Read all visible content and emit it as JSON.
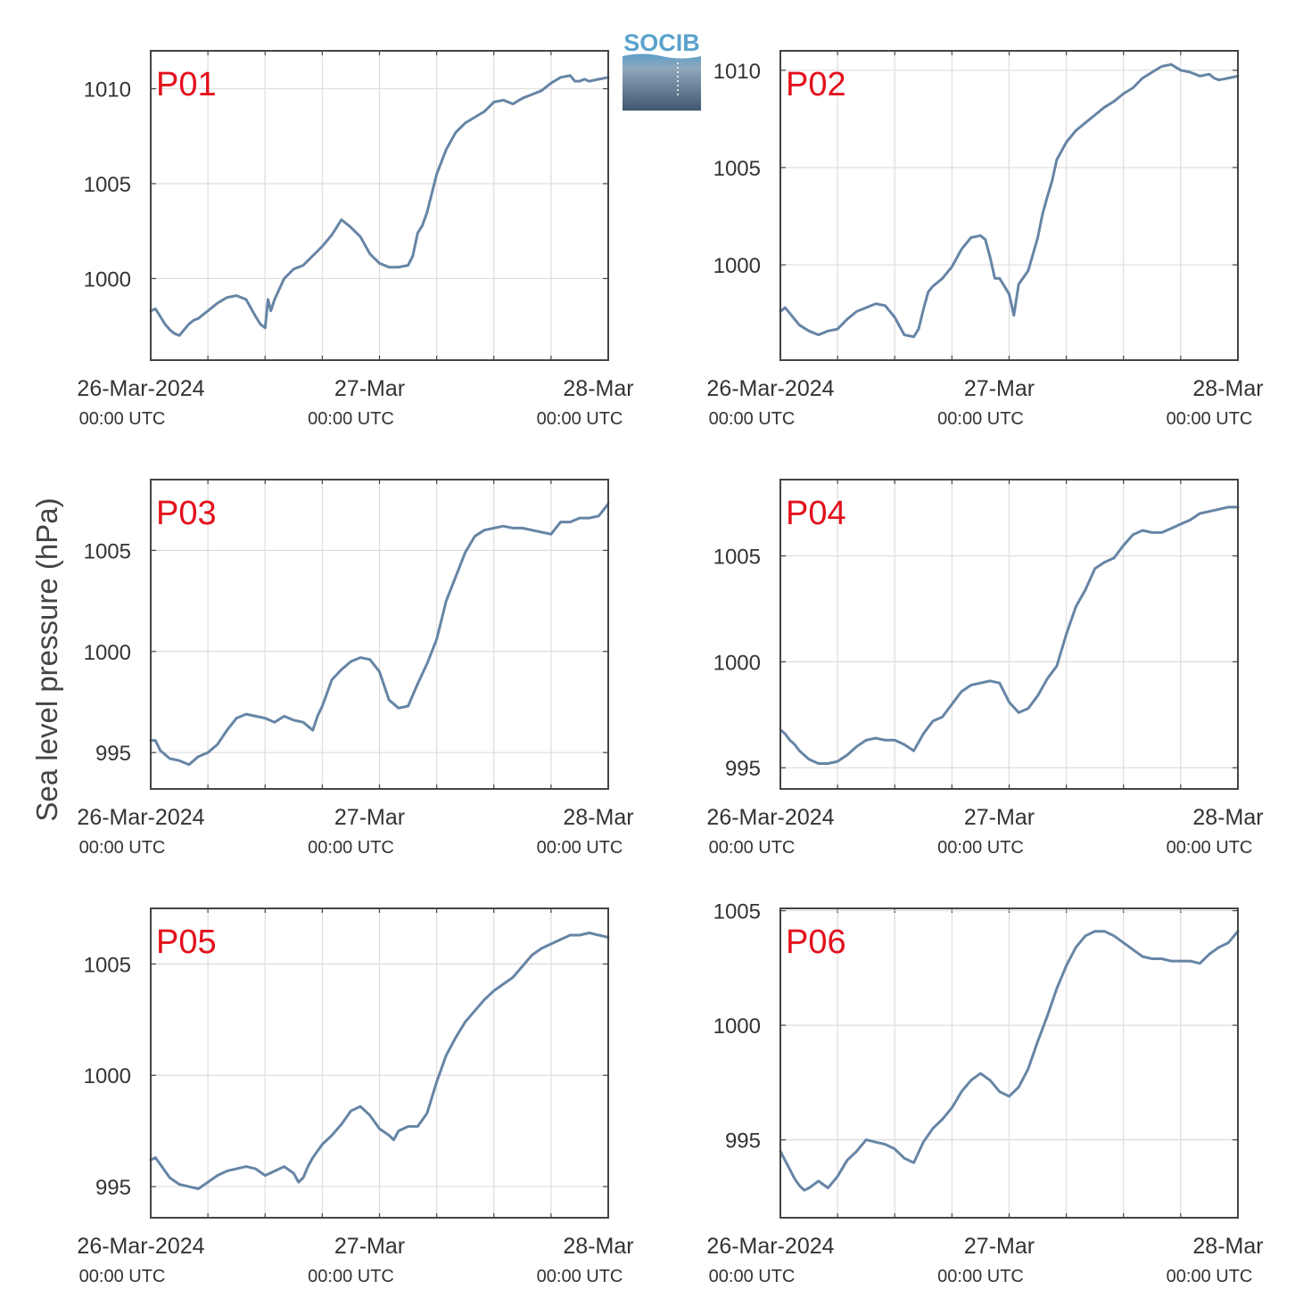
{
  "figure": {
    "ylabel": "Sea level pressure (hPa)",
    "logo_text": "SOCIB",
    "x_tick_dates": [
      "26-Mar-2024",
      "27-Mar",
      "28-Mar"
    ],
    "x_tick_times": [
      "00:00 UTC",
      "00:00 UTC",
      "00:00 UTC"
    ],
    "colors": {
      "line": "#6685a6",
      "panel_label": "#e3101b",
      "grid": "#dddddd",
      "axes": "#444444"
    }
  },
  "chart_data": [
    {
      "type": "line",
      "panel": "P01",
      "title": "",
      "xlabel": "",
      "ylabel": "Sea level pressure (hPa)",
      "xlim": [
        0,
        48
      ],
      "ylim": [
        995.7,
        1012.0
      ],
      "yticks": [
        1000,
        1005,
        1010
      ],
      "grid": true,
      "x": [
        0,
        0.5,
        1,
        1.5,
        2,
        2.5,
        3,
        3.5,
        4,
        4.5,
        5,
        6,
        7,
        8,
        9,
        10,
        11,
        11.5,
        12,
        12.3,
        12.6,
        13,
        14,
        15,
        16,
        17,
        18,
        19,
        20,
        20.5,
        21,
        22,
        23,
        24,
        25,
        26,
        27,
        27.5,
        28,
        28.5,
        29,
        30,
        31,
        32,
        33,
        34,
        35,
        36,
        37,
        38,
        39,
        40,
        41,
        42,
        43,
        44,
        44.5,
        45,
        45.5,
        46,
        47,
        48
      ],
      "values": [
        998.3,
        998.4,
        998.0,
        997.6,
        997.3,
        997.1,
        997.0,
        997.3,
        997.6,
        997.8,
        997.9,
        998.3,
        998.7,
        999.0,
        999.1,
        998.9,
        998.0,
        997.6,
        997.4,
        998.9,
        998.3,
        998.9,
        1000.0,
        1000.5,
        1000.7,
        1001.2,
        1001.7,
        1002.3,
        1003.1,
        1002.9,
        1002.7,
        1002.2,
        1001.3,
        1000.8,
        1000.6,
        1000.6,
        1000.7,
        1001.2,
        1002.4,
        1002.8,
        1003.5,
        1005.5,
        1006.8,
        1007.7,
        1008.2,
        1008.5,
        1008.8,
        1009.3,
        1009.4,
        1009.2,
        1009.5,
        1009.7,
        1009.9,
        1010.3,
        1010.6,
        1010.7,
        1010.4,
        1010.4,
        1010.5,
        1010.4,
        1010.5,
        1010.6
      ]
    },
    {
      "type": "line",
      "panel": "P02",
      "title": "",
      "xlabel": "",
      "ylabel": "Sea level pressure (hPa)",
      "xlim": [
        0,
        48
      ],
      "ylim": [
        995.1,
        1011.0
      ],
      "yticks": [
        1000,
        1005,
        1010
      ],
      "grid": true,
      "x": [
        0,
        0.5,
        1,
        1.5,
        2,
        3,
        4,
        5,
        6,
        7,
        8,
        9,
        10,
        11,
        12,
        13,
        14,
        14.5,
        15,
        15.5,
        16,
        17,
        18,
        19,
        20,
        21,
        21.5,
        22,
        22.5,
        23,
        24,
        24.5,
        25,
        26,
        27,
        27.5,
        28,
        28.5,
        29,
        30,
        31,
        32,
        33,
        34,
        35,
        36,
        37,
        38,
        39,
        40,
        41,
        42,
        43,
        44,
        45,
        45.5,
        46,
        47,
        48
      ],
      "values": [
        997.6,
        997.8,
        997.5,
        997.2,
        996.9,
        996.6,
        996.4,
        996.6,
        996.7,
        997.2,
        997.6,
        997.8,
        998.0,
        997.9,
        997.3,
        996.4,
        996.3,
        996.7,
        997.7,
        998.6,
        998.9,
        999.3,
        999.9,
        1000.8,
        1001.4,
        1001.5,
        1001.3,
        1000.4,
        999.3,
        999.3,
        998.5,
        997.4,
        999.0,
        999.7,
        1001.4,
        1002.6,
        1003.5,
        1004.3,
        1005.4,
        1006.3,
        1006.9,
        1007.3,
        1007.7,
        1008.1,
        1008.4,
        1008.8,
        1009.1,
        1009.6,
        1009.9,
        1010.2,
        1010.3,
        1010.0,
        1009.9,
        1009.7,
        1009.8,
        1009.6,
        1009.5,
        1009.6,
        1009.7
      ]
    },
    {
      "type": "line",
      "panel": "P03",
      "title": "",
      "xlabel": "",
      "ylabel": "Sea level pressure (hPa)",
      "xlim": [
        0,
        48
      ],
      "ylim": [
        993.2,
        1008.5
      ],
      "yticks": [
        995,
        1000,
        1005
      ],
      "grid": true,
      "x": [
        0,
        0.5,
        1,
        1.5,
        2,
        3,
        4,
        5,
        6,
        7,
        8,
        9,
        10,
        11,
        12,
        13,
        14,
        15,
        16,
        17,
        17.5,
        18,
        19,
        20,
        21,
        22,
        23,
        24,
        25,
        26,
        27,
        28,
        29,
        30,
        31,
        32,
        33,
        34,
        35,
        36,
        37,
        38,
        39,
        40,
        41,
        42,
        43,
        44,
        45,
        46,
        47,
        48
      ],
      "values": [
        995.6,
        995.6,
        995.1,
        994.9,
        994.7,
        994.6,
        994.4,
        994.8,
        995.0,
        995.4,
        996.1,
        996.7,
        996.9,
        996.8,
        996.7,
        996.5,
        996.8,
        996.6,
        996.5,
        996.1,
        996.8,
        997.3,
        998.6,
        999.1,
        999.5,
        999.7,
        999.6,
        999.0,
        997.6,
        997.2,
        997.3,
        998.4,
        999.4,
        1000.6,
        1002.5,
        1003.7,
        1004.9,
        1005.7,
        1006.0,
        1006.1,
        1006.2,
        1006.1,
        1006.1,
        1006.0,
        1005.9,
        1005.8,
        1006.4,
        1006.4,
        1006.6,
        1006.6,
        1006.7,
        1007.3
      ]
    },
    {
      "type": "line",
      "panel": "P04",
      "title": "",
      "xlabel": "",
      "ylabel": "Sea level pressure (hPa)",
      "xlim": [
        0,
        48
      ],
      "ylim": [
        994.0,
        1008.6
      ],
      "yticks": [
        995,
        1000,
        1005
      ],
      "grid": true,
      "x": [
        0,
        0.5,
        1,
        1.5,
        2,
        3,
        4,
        5,
        6,
        7,
        8,
        9,
        10,
        11,
        12,
        13,
        14,
        15,
        16,
        17,
        18,
        19,
        20,
        21,
        22,
        23,
        24,
        25,
        26,
        27,
        28,
        29,
        30,
        31,
        32,
        33,
        34,
        35,
        36,
        37,
        38,
        39,
        40,
        41,
        42,
        43,
        44,
        45,
        46,
        47,
        48
      ],
      "values": [
        996.8,
        996.6,
        996.3,
        996.1,
        995.8,
        995.4,
        995.2,
        995.2,
        995.3,
        995.6,
        996.0,
        996.3,
        996.4,
        996.3,
        996.3,
        996.1,
        995.8,
        996.6,
        997.2,
        997.4,
        998.0,
        998.6,
        998.9,
        999.0,
        999.1,
        999.0,
        998.1,
        997.6,
        997.8,
        998.4,
        999.2,
        999.8,
        1001.3,
        1002.6,
        1003.4,
        1004.4,
        1004.7,
        1004.9,
        1005.5,
        1006.0,
        1006.2,
        1006.1,
        1006.1,
        1006.3,
        1006.5,
        1006.7,
        1007.0,
        1007.1,
        1007.2,
        1007.3,
        1007.3
      ]
    },
    {
      "type": "line",
      "panel": "P05",
      "title": "",
      "xlabel": "",
      "ylabel": "Sea level pressure (hPa)",
      "xlim": [
        0,
        48
      ],
      "ylim": [
        993.6,
        1007.5
      ],
      "yticks": [
        995,
        1000,
        1005
      ],
      "grid": true,
      "x": [
        0,
        0.5,
        1,
        1.5,
        2,
        3,
        4,
        5,
        6,
        7,
        8,
        9,
        10,
        11,
        12,
        13,
        14,
        15,
        15.5,
        16,
        16.5,
        17,
        18,
        19,
        20,
        21,
        22,
        23,
        24,
        25,
        25.5,
        26,
        27,
        28,
        29,
        30,
        31,
        32,
        33,
        34,
        35,
        36,
        37,
        38,
        39,
        40,
        41,
        42,
        43,
        44,
        45,
        46,
        47,
        48
      ],
      "values": [
        996.2,
        996.3,
        996.0,
        995.7,
        995.4,
        995.1,
        995.0,
        994.9,
        995.2,
        995.5,
        995.7,
        995.8,
        995.9,
        995.8,
        995.5,
        995.7,
        995.9,
        995.6,
        995.2,
        995.4,
        995.9,
        996.3,
        996.9,
        997.3,
        997.8,
        998.4,
        998.6,
        998.2,
        997.6,
        997.3,
        997.1,
        997.5,
        997.7,
        997.7,
        998.3,
        999.7,
        1000.9,
        1001.7,
        1002.4,
        1002.9,
        1003.4,
        1003.8,
        1004.1,
        1004.4,
        1004.9,
        1005.4,
        1005.7,
        1005.9,
        1006.1,
        1006.3,
        1006.3,
        1006.4,
        1006.3,
        1006.2
      ]
    },
    {
      "type": "line",
      "panel": "P06",
      "title": "",
      "xlabel": "",
      "ylabel": "Sea level pressure (hPa)",
      "xlim": [
        0,
        48
      ],
      "ylim": [
        991.6,
        1005.1
      ],
      "yticks": [
        995,
        1000,
        1005
      ],
      "grid": true,
      "x": [
        0,
        0.5,
        1,
        1.5,
        2,
        2.5,
        3,
        4,
        5,
        6,
        7,
        8,
        9,
        10,
        11,
        12,
        13,
        14,
        15,
        16,
        17,
        18,
        19,
        20,
        21,
        22,
        23,
        24,
        25,
        26,
        27,
        28,
        29,
        30,
        31,
        32,
        33,
        34,
        35,
        36,
        37,
        38,
        39,
        40,
        41,
        42,
        43,
        44,
        45,
        46,
        47,
        48
      ],
      "values": [
        994.5,
        994.1,
        993.7,
        993.3,
        993.0,
        992.8,
        992.9,
        993.2,
        992.9,
        993.4,
        994.1,
        994.5,
        995.0,
        994.9,
        994.8,
        994.6,
        994.2,
        994.0,
        994.9,
        995.5,
        995.9,
        996.4,
        997.1,
        997.6,
        997.9,
        997.6,
        997.1,
        996.9,
        997.3,
        998.1,
        999.3,
        1000.4,
        1001.6,
        1002.6,
        1003.4,
        1003.9,
        1004.1,
        1004.1,
        1003.9,
        1003.6,
        1003.3,
        1003.0,
        1002.9,
        1002.9,
        1002.8,
        1002.8,
        1002.8,
        1002.7,
        1003.1,
        1003.4,
        1003.6,
        1004.1
      ]
    }
  ]
}
